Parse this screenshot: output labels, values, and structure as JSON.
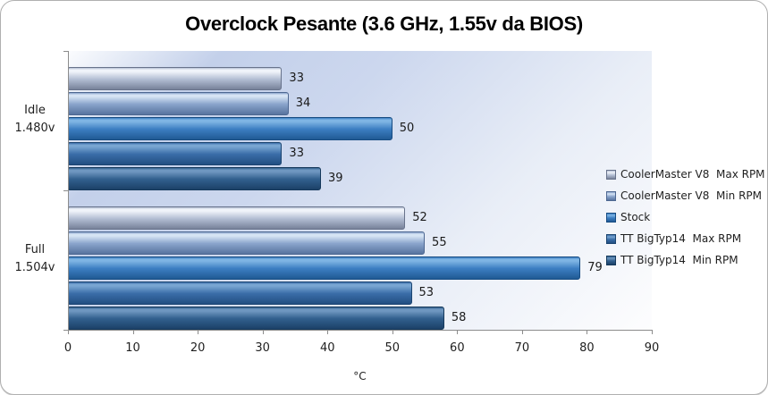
{
  "title": "Overclock Pesante (3.6 GHz, 1.55v da BIOS)",
  "chart_data": {
    "type": "bar",
    "orientation": "horizontal",
    "title": "Overclock Pesante (3.6 GHz, 1.55v da BIOS)",
    "xlabel": "°C",
    "xlim": [
      0,
      90
    ],
    "xticks": [
      "0",
      "10",
      "20",
      "30",
      "40",
      "50",
      "60",
      "70",
      "80",
      "90"
    ],
    "grid": false,
    "legend_position": "right",
    "categories": [
      "Idle\n1.480v",
      "Full\n1.504v"
    ],
    "series": [
      {
        "name": "CoolerMaster V8  Max RPM",
        "values": [
          33,
          52
        ],
        "colors": {
          "light": "#f0f4fa",
          "main": "#b4bfd4",
          "dark": "#77829a",
          "border": "#68738b"
        }
      },
      {
        "name": "CoolerMaster V8  Min RPM",
        "values": [
          34,
          55
        ],
        "colors": {
          "light": "#d6e4f4",
          "main": "#8aa4cc",
          "dark": "#58749f",
          "border": "#4d6791"
        }
      },
      {
        "name": "Stock",
        "values": [
          50,
          79
        ],
        "colors": {
          "light": "#7fb5e4",
          "main": "#3c7ec2",
          "dark": "#205a94",
          "border": "#174c82"
        }
      },
      {
        "name": "TT BigTyp14  Max RPM",
        "values": [
          33,
          53
        ],
        "colors": {
          "light": "#79a6d2",
          "main": "#3a6da8",
          "dark": "#224f82",
          "border": "#1b4470"
        }
      },
      {
        "name": "TT BigTyp14  Min RPM",
        "values": [
          39,
          58
        ],
        "colors": {
          "light": "#6f97c0",
          "main": "#32608e",
          "dark": "#1c4168",
          "border": "#16395b"
        }
      }
    ]
  },
  "colors": {
    "chart_border": "#b0b0b0",
    "axis": "#8c8c8c",
    "text": "#1f1f1f",
    "plot_gradient": [
      "#fbfcfe",
      "#c3d0ea",
      "#ccd7ee",
      "#e9eef7",
      "#fdfdfe"
    ]
  }
}
